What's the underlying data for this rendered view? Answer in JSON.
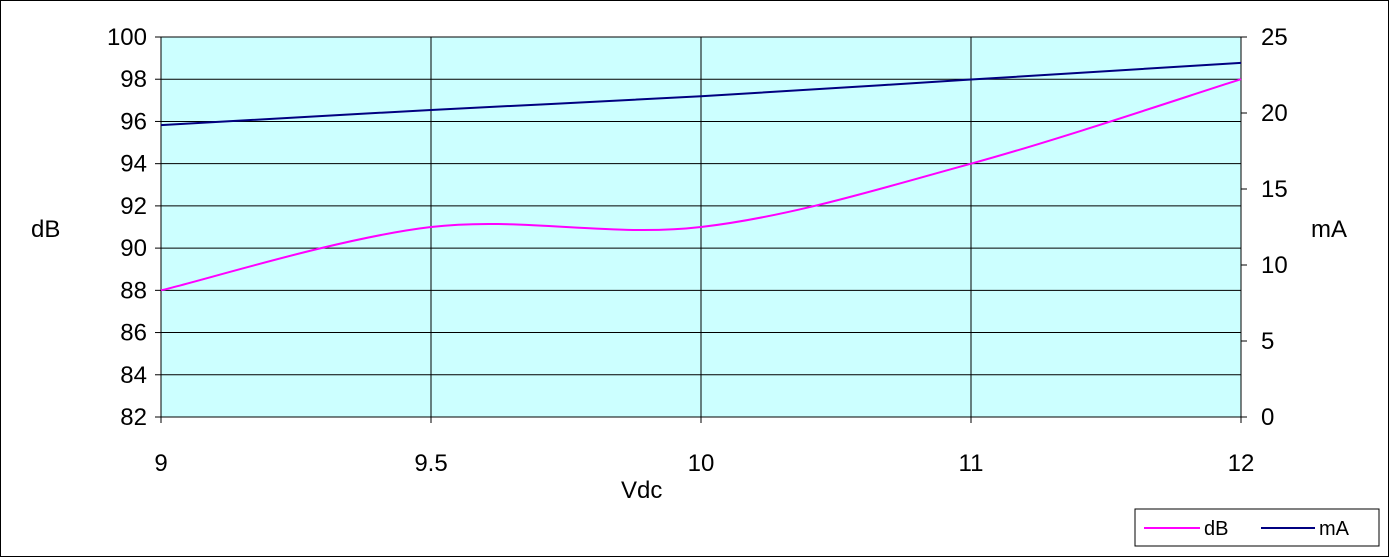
{
  "chart_data": {
    "type": "line",
    "x": [
      9,
      9.5,
      10,
      11,
      12
    ],
    "x_tick_labels": [
      "9",
      "9.5",
      "10",
      "11",
      "12"
    ],
    "xlabel": "Vdc",
    "ylabel_left": "dB",
    "ylabel_right": "mA",
    "ylim_left": [
      82,
      100
    ],
    "ylim_right": [
      0,
      25
    ],
    "y_left_ticks": [
      "82",
      "84",
      "86",
      "88",
      "90",
      "92",
      "94",
      "96",
      "98",
      "100"
    ],
    "y_right_ticks": [
      "0",
      "5",
      "10",
      "15",
      "20",
      "25"
    ],
    "grid": true,
    "plot_background": "#ccffff",
    "legend_position": "bottom-right",
    "series": [
      {
        "name": "dB",
        "axis": "left",
        "color": "#ff00ff",
        "values": [
          88,
          91,
          91,
          94,
          98
        ]
      },
      {
        "name": "mA",
        "axis": "right",
        "color": "#000080",
        "values": [
          19.2,
          20.2,
          21.1,
          22.2,
          23.3
        ]
      }
    ]
  }
}
